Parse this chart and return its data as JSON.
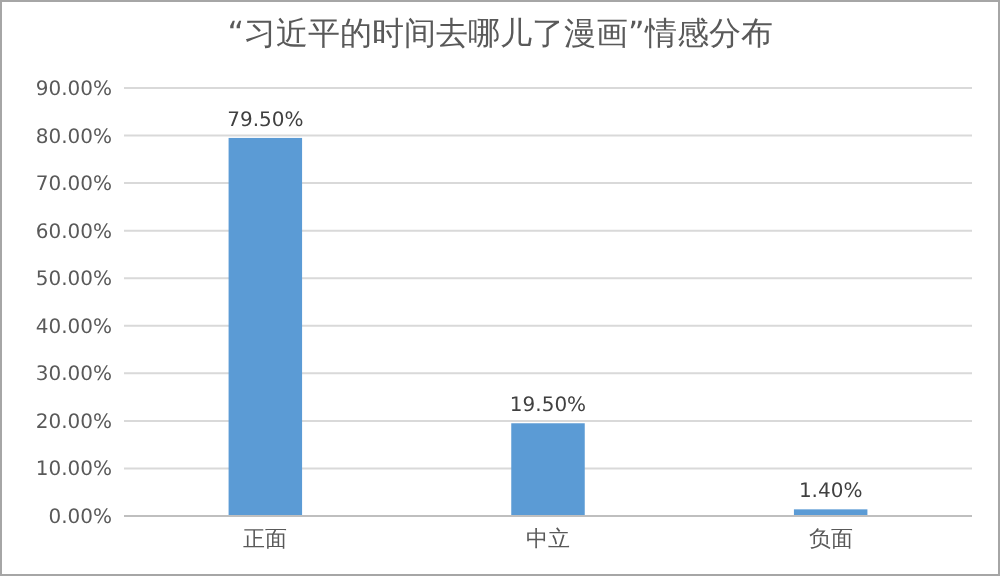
{
  "chart_data": {
    "type": "bar",
    "title": "“习近平的时间去哪儿了漫画”情感分布",
    "categories": [
      "正面",
      "中立",
      "负面"
    ],
    "values": [
      79.5,
      19.5,
      1.4
    ],
    "value_labels": [
      "79.50%",
      "19.50%",
      "1.40%"
    ],
    "color": "#5b9bd5",
    "ylim": [
      0,
      90
    ],
    "yticks": [
      {
        "value": 0,
        "label": "0.00%"
      },
      {
        "value": 10,
        "label": "10.00%"
      },
      {
        "value": 20,
        "label": "20.00%"
      },
      {
        "value": 30,
        "label": "30.00%"
      },
      {
        "value": 40,
        "label": "40.00%"
      },
      {
        "value": 50,
        "label": "50.00%"
      },
      {
        "value": 60,
        "label": "60.00%"
      },
      {
        "value": 70,
        "label": "70.00%"
      },
      {
        "value": 80,
        "label": "80.00%"
      },
      {
        "value": 90,
        "label": "90.00%"
      }
    ],
    "grid": "y"
  }
}
